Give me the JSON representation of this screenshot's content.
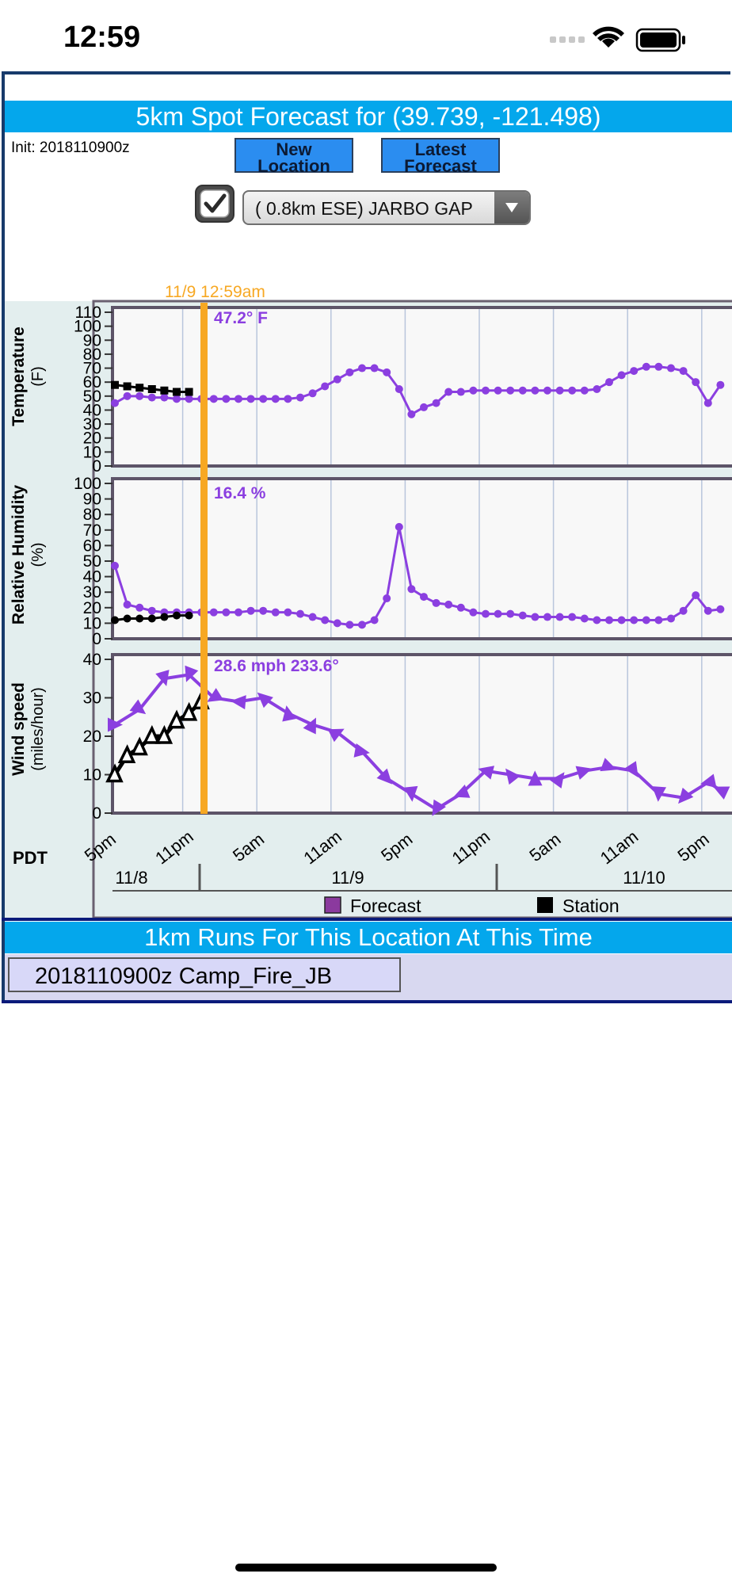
{
  "status": {
    "time": "12:59"
  },
  "header": {
    "title": "5km Spot Forecast for (39.739, -121.498)",
    "init": "Init: 2018110900z",
    "new_location_line1": "New",
    "new_location_line2": "Location",
    "latest_forecast_line1": "Latest",
    "latest_forecast_line2": "Forecast",
    "location_select": "( 0.8km ESE) JARBO GAP",
    "checkbox_checked": true
  },
  "current_time": {
    "label": "11/9 12:59am",
    "temp_readout": "47.2° F",
    "rh_readout": "16.4 %",
    "wind_readout": "28.6 mph 233.6°"
  },
  "axes": {
    "temp_label": "Temperature",
    "temp_unit": "(F)",
    "temp_ticks": [
      "110",
      "100",
      "90",
      "80",
      "70",
      "60",
      "50",
      "40",
      "30",
      "20",
      "10",
      "0"
    ],
    "rh_label": "Relative Humidity",
    "rh_unit": "(%)",
    "rh_ticks": [
      "100",
      "90",
      "80",
      "70",
      "60",
      "50",
      "40",
      "30",
      "20",
      "10",
      "0"
    ],
    "wind_label": "Wind speed",
    "wind_unit": "(miles/hour)",
    "wind_ticks": [
      "40",
      "30",
      "20",
      "10",
      "0"
    ],
    "tz": "PDT",
    "time_ticks": [
      "5pm",
      "11pm",
      "5am",
      "11am",
      "5pm",
      "11pm",
      "5am",
      "11am",
      "5pm"
    ],
    "dates": [
      "11/8",
      "11/9",
      "11/10"
    ]
  },
  "legend": {
    "forecast": "Forecast",
    "station": "Station"
  },
  "runs": {
    "title": "1km Runs For This Location At This Time",
    "items": [
      "2018110900z Camp_Fire_JB"
    ]
  },
  "colors": {
    "forecast": "#8b3fe0",
    "station": "#000000",
    "now_line": "#f7a823",
    "title_bar": "#04a7ec"
  },
  "chart_data": [
    {
      "type": "line",
      "ylabel": "Temperature (F)",
      "ylim": [
        0,
        110
      ],
      "x_hours": [
        0,
        1,
        2,
        3,
        4,
        5,
        6,
        7,
        8,
        9,
        10,
        11,
        12,
        13,
        14,
        15,
        16,
        17,
        18,
        19,
        20,
        21,
        22,
        23,
        24,
        25,
        26,
        27,
        28,
        29,
        30,
        31,
        32,
        33,
        34,
        35,
        36,
        37,
        38,
        39,
        40,
        41,
        42,
        43,
        44,
        45,
        46,
        47,
        48,
        49
      ],
      "series": [
        {
          "name": "Forecast",
          "values": [
            45,
            50,
            50,
            49,
            49,
            48,
            48,
            48,
            48,
            48,
            48,
            48,
            48,
            48,
            48,
            49,
            52,
            57,
            62,
            67,
            70,
            70,
            67,
            55,
            37,
            42,
            45,
            53,
            53,
            54,
            54,
            54,
            54,
            54,
            54,
            54,
            54,
            54,
            54,
            55,
            60,
            65,
            68,
            71,
            71,
            70,
            68,
            60,
            45,
            58
          ]
        },
        {
          "name": "Station",
          "x_hours": [
            0,
            1,
            2,
            3,
            4,
            5,
            6
          ],
          "values": [
            58,
            57,
            56,
            55,
            54,
            53,
            53
          ]
        }
      ]
    },
    {
      "type": "line",
      "ylabel": "Relative Humidity (%)",
      "ylim": [
        0,
        100
      ],
      "series": [
        {
          "name": "Forecast",
          "values": [
            47,
            22,
            20,
            18,
            17,
            17,
            17,
            17,
            17,
            17,
            17,
            18,
            18,
            17,
            17,
            16,
            14,
            12,
            10,
            9,
            9,
            12,
            26,
            72,
            32,
            27,
            23,
            22,
            20,
            17,
            16,
            16,
            16,
            15,
            14,
            14,
            14,
            14,
            13,
            12,
            12,
            12,
            12,
            12,
            12,
            13,
            18,
            28,
            18,
            19
          ]
        },
        {
          "name": "Station",
          "x_hours": [
            0,
            1,
            2,
            3,
            4,
            5,
            6
          ],
          "values": [
            12,
            13,
            13,
            13,
            14,
            15,
            15
          ]
        }
      ]
    },
    {
      "type": "line",
      "ylabel": "Wind speed (miles/hour)",
      "ylim": [
        0,
        40
      ],
      "x_hours": [
        0,
        2,
        4,
        6,
        8,
        10,
        12,
        14,
        16,
        18,
        20,
        22,
        24,
        26,
        28,
        30,
        32,
        34,
        36,
        38,
        40,
        42,
        44,
        46,
        48,
        49
      ],
      "series": [
        {
          "name": "Forecast",
          "values": [
            23,
            27,
            35,
            36,
            30,
            29,
            30,
            26,
            23,
            21,
            16,
            9,
            5,
            1,
            5,
            11,
            10,
            9,
            9,
            11,
            12,
            11,
            5,
            4,
            8,
            6
          ]
        },
        {
          "name": "Station",
          "x_hours": [
            0,
            1,
            2,
            3,
            4,
            5,
            6,
            7
          ],
          "values": [
            10,
            15,
            17,
            20,
            20,
            24,
            26,
            29
          ]
        }
      ]
    }
  ]
}
